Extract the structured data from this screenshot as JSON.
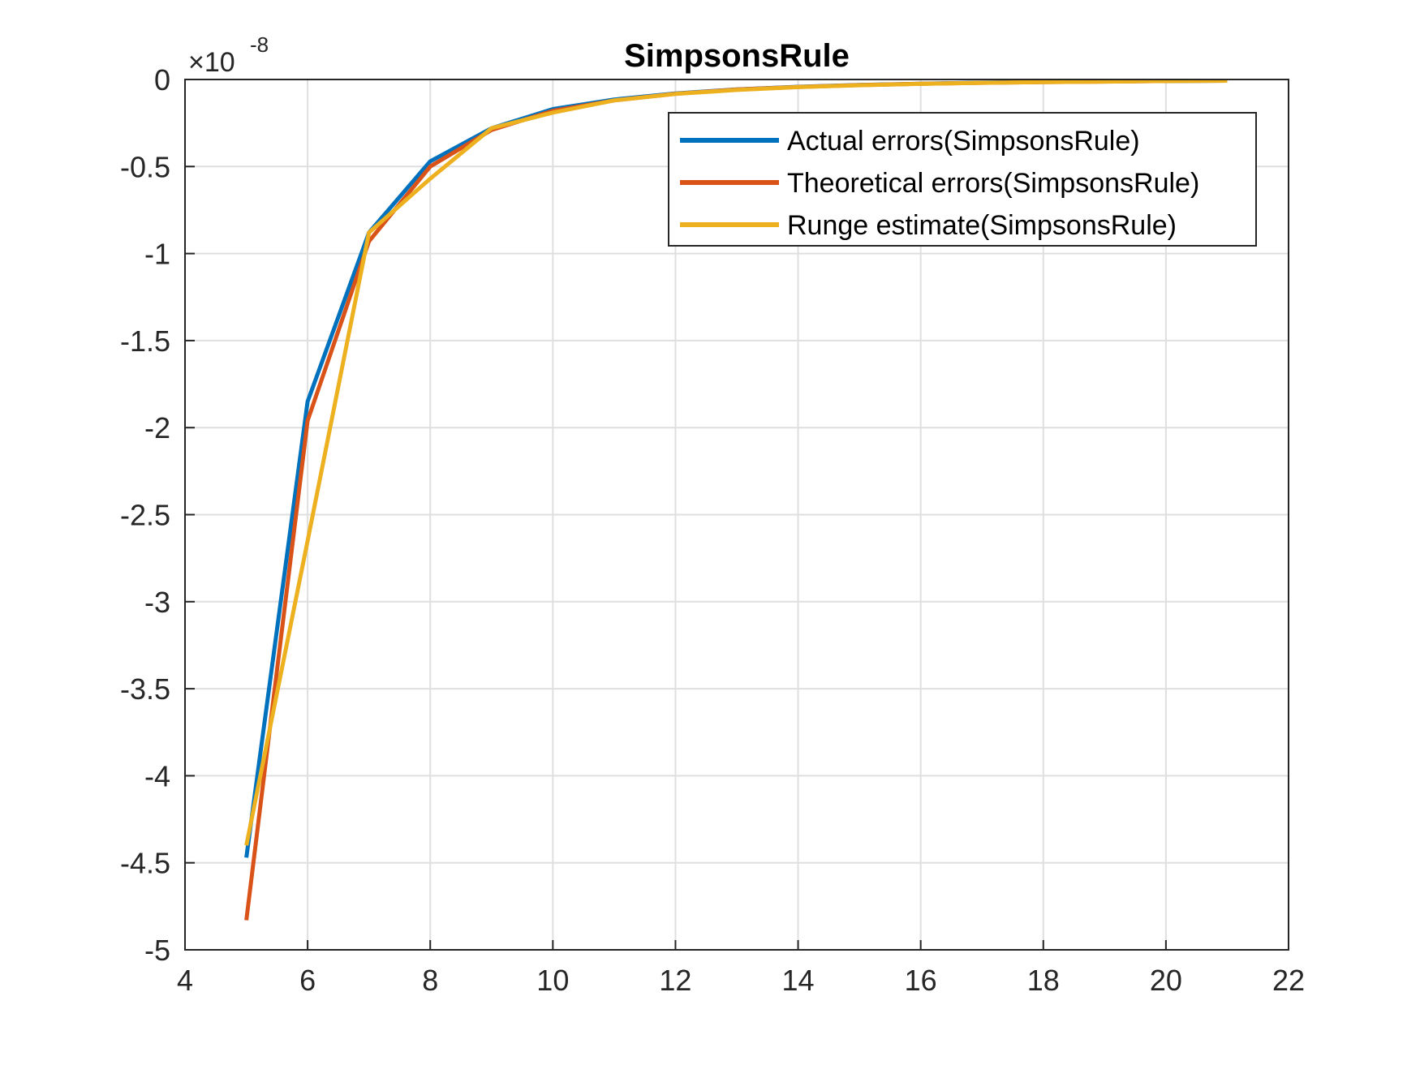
{
  "chart_data": {
    "type": "line",
    "title": "SimpsonsRule",
    "xlabel": "",
    "ylabel": "",
    "xlim": [
      4,
      22
    ],
    "ylim": [
      -5,
      0
    ],
    "x_ticks": [
      4,
      6,
      8,
      10,
      12,
      14,
      16,
      18,
      20,
      22
    ],
    "y_ticks": [
      0,
      -0.5,
      -1,
      -1.5,
      -2,
      -2.5,
      -3,
      -3.5,
      -4,
      -4.5,
      -5
    ],
    "y_exponent_label": "×10",
    "y_exponent_power": "-8",
    "grid": true,
    "legend_position": "top-right",
    "x": [
      5,
      6,
      7,
      8,
      9,
      10,
      11,
      12,
      13,
      14,
      15,
      16,
      17,
      18,
      19,
      20,
      21
    ],
    "series": [
      {
        "name": "Actual errors(SimpsonsRule)",
        "color": "#0072BD",
        "values": [
          -4.47,
          -1.85,
          -0.88,
          -0.47,
          -0.28,
          -0.17,
          -0.115,
          -0.08,
          -0.057,
          -0.042,
          -0.031,
          -0.024,
          -0.018,
          -0.014,
          -0.011,
          -0.009,
          -0.007
        ]
      },
      {
        "name": "Theoretical errors(SimpsonsRule)",
        "color": "#D95319",
        "values": [
          -4.83,
          -1.96,
          -0.93,
          -0.5,
          -0.29,
          -0.18,
          -0.12,
          -0.082,
          -0.058,
          -0.043,
          -0.032,
          -0.024,
          -0.019,
          -0.015,
          -0.012,
          -0.009,
          -0.007
        ]
      },
      {
        "name": "Runge estimate(SimpsonsRule)",
        "color": "#EDB120",
        "values": [
          -4.4,
          -2.65,
          -0.88,
          -0.57,
          -0.28,
          -0.19,
          -0.12,
          -0.083,
          -0.06,
          -0.044,
          -0.033,
          -0.025,
          -0.019,
          -0.015,
          -0.012,
          -0.009,
          -0.007
        ]
      }
    ]
  }
}
